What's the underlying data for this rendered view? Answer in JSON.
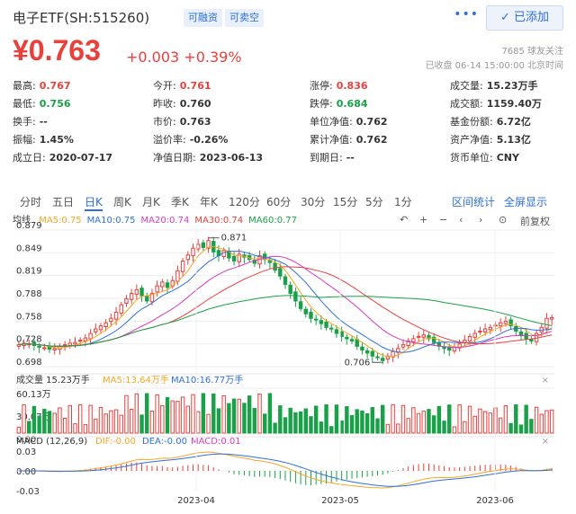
{
  "header": {
    "title": "电子ETF(SH:515260)",
    "badge_margin": "可融资",
    "badge_short": "可卖空",
    "more": "•••",
    "add_button": "✓ 已添加"
  },
  "quote": {
    "price": "¥0.763",
    "change": "+0.003 +0.39%",
    "followers": "7685 球友关注",
    "status": "已收盘 06-14 15:00:00 北京时间"
  },
  "stats": [
    {
      "label": "最高:",
      "value": "0.767",
      "color": "red"
    },
    {
      "label": "今开:",
      "value": "0.761",
      "color": "red"
    },
    {
      "label": "涨停:",
      "value": "0.836",
      "color": "red"
    },
    {
      "label": "成交量:",
      "value": "15.23万手",
      "color": "normal"
    },
    {
      "label": "最低:",
      "value": "0.756",
      "color": "green"
    },
    {
      "label": "昨收:",
      "value": "0.760",
      "color": "normal"
    },
    {
      "label": "跌停:",
      "value": "0.684",
      "color": "green"
    },
    {
      "label": "成交额:",
      "value": "1159.40万",
      "color": "normal"
    },
    {
      "label": "换手:",
      "value": "--",
      "color": "normal"
    },
    {
      "label": "市价:",
      "value": "0.763",
      "color": "normal"
    },
    {
      "label": "单位净值:",
      "value": "0.762",
      "color": "normal"
    },
    {
      "label": "基金份额:",
      "value": "6.72亿",
      "color": "normal"
    },
    {
      "label": "振幅:",
      "value": "1.45%",
      "color": "normal"
    },
    {
      "label": "溢价率:",
      "value": "-0.26%",
      "color": "normal"
    },
    {
      "label": "累计净值:",
      "value": "0.762",
      "color": "normal"
    },
    {
      "label": "资产净值:",
      "value": "5.13亿",
      "color": "normal"
    },
    {
      "label": "成立日:",
      "value": "2020-07-17",
      "color": "normal"
    },
    {
      "label": "净值日期:",
      "value": "2023-06-13",
      "color": "normal"
    },
    {
      "label": "到期日:",
      "value": "--",
      "color": "normal"
    },
    {
      "label": "货币单位:",
      "value": "CNY",
      "color": "normal"
    }
  ],
  "tabs": [
    "分时",
    "五日",
    "日K",
    "周K",
    "月K",
    "季K",
    "年K",
    "120分",
    "60分",
    "30分",
    "15分",
    "5分",
    "1分"
  ],
  "active_tab": "日K",
  "tab_links": {
    "interval_stats": "区间统计",
    "fullscreen": "全屏显示"
  },
  "chart_toolbar": {
    "mode_label": "均线",
    "adjust": "前复权"
  },
  "ma_legend": [
    {
      "label": "MA5:0.75",
      "color": "#f5a623"
    },
    {
      "label": "MA10:0.75",
      "color": "#2f6fd6"
    },
    {
      "label": "MA20:0.74",
      "color": "#d63bbf"
    },
    {
      "label": "MA30:0.74",
      "color": "#e8413c"
    },
    {
      "label": "MA60:0.77",
      "color": "#1aa048"
    }
  ],
  "price_axis": [
    "0.879",
    "0.849",
    "0.819",
    "0.788",
    "0.758",
    "0.728",
    "0.698"
  ],
  "annotations": {
    "high": "0.871",
    "low": "0.706"
  },
  "volume": {
    "label": "成交量 15.23万手",
    "ma5": "MA5:13.64万手",
    "ma10": "MA10:16.77万手",
    "axis": [
      "60.13万",
      "30.07万",
      "0.00"
    ]
  },
  "macd": {
    "label": "MACD (12,26,9)",
    "dif": "DIF:-0.00",
    "dea": "DEA:-0.00",
    "macd": "MACD:0.01",
    "axis": [
      "0.03",
      "0.00",
      "-0.03"
    ]
  },
  "date_axis": [
    "2023-04",
    "2023-05",
    "2023-06"
  ],
  "colors": {
    "up": "#e8413c",
    "down": "#1aa048",
    "accent": "#2f6fd6"
  },
  "chart_data": {
    "type": "candlestick",
    "ylim": [
      0.698,
      0.879
    ],
    "close": [
      0.727,
      0.729,
      0.728,
      0.726,
      0.724,
      0.723,
      0.721,
      0.722,
      0.725,
      0.727,
      0.729,
      0.73,
      0.733,
      0.736,
      0.742,
      0.748,
      0.752,
      0.756,
      0.762,
      0.77,
      0.78,
      0.788,
      0.795,
      0.8,
      0.792,
      0.785,
      0.795,
      0.805,
      0.81,
      0.803,
      0.812,
      0.825,
      0.838,
      0.846,
      0.855,
      0.86,
      0.856,
      0.865,
      0.85,
      0.845,
      0.852,
      0.842,
      0.838,
      0.847,
      0.843,
      0.84,
      0.835,
      0.845,
      0.84,
      0.836,
      0.826,
      0.818,
      0.807,
      0.795,
      0.785,
      0.775,
      0.768,
      0.762,
      0.76,
      0.755,
      0.75,
      0.748,
      0.742,
      0.738,
      0.735,
      0.732,
      0.725,
      0.72,
      0.716,
      0.712,
      0.71,
      0.706,
      0.712,
      0.718,
      0.722,
      0.727,
      0.732,
      0.735,
      0.738,
      0.74,
      0.735,
      0.73,
      0.725,
      0.722,
      0.72,
      0.724,
      0.728,
      0.733,
      0.738,
      0.742,
      0.745,
      0.748,
      0.75,
      0.753,
      0.756,
      0.758,
      0.752,
      0.745,
      0.74,
      0.735,
      0.732,
      0.742,
      0.75,
      0.762,
      0.763
    ],
    "volume_max": 60.13,
    "macd_ylim": [
      -0.03,
      0.03
    ]
  }
}
